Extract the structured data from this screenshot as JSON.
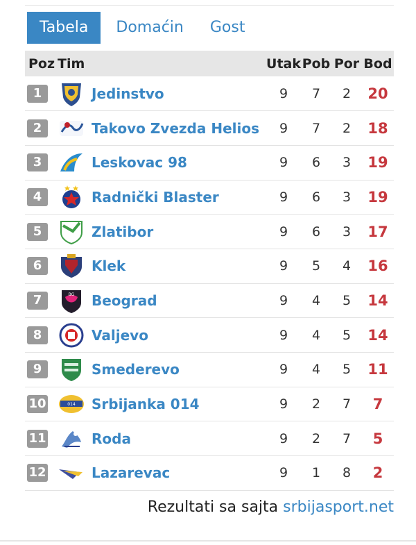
{
  "tabs": [
    {
      "label": "Tabela",
      "active": true
    },
    {
      "label": "Domaćin",
      "active": false
    },
    {
      "label": "Gost",
      "active": false
    }
  ],
  "table": {
    "headers": {
      "poz": "Poz",
      "tim": "Tim",
      "utak": "Utak",
      "pob": "Pob",
      "por": "Por",
      "bod": "Bod"
    },
    "rows": [
      {
        "pos": "1",
        "team": "Jedinstvo",
        "utak": "9",
        "pob": "7",
        "por": "2",
        "bod": "20",
        "logo": "jedinstvo-logo-icon"
      },
      {
        "pos": "2",
        "team": "Takovo Zvezda Helios",
        "utak": "9",
        "pob": "7",
        "por": "2",
        "bod": "18",
        "logo": "takovo-logo-icon"
      },
      {
        "pos": "3",
        "team": "Leskovac 98",
        "utak": "9",
        "pob": "6",
        "por": "3",
        "bod": "19",
        "logo": "leskovac-logo-icon"
      },
      {
        "pos": "4",
        "team": "Radnički Blaster",
        "utak": "9",
        "pob": "6",
        "por": "3",
        "bod": "19",
        "logo": "radnicki-logo-icon"
      },
      {
        "pos": "5",
        "team": "Zlatibor",
        "utak": "9",
        "pob": "6",
        "por": "3",
        "bod": "17",
        "logo": "zlatibor-logo-icon"
      },
      {
        "pos": "6",
        "team": "Klek",
        "utak": "9",
        "pob": "5",
        "por": "4",
        "bod": "16",
        "logo": "klek-logo-icon"
      },
      {
        "pos": "7",
        "team": "Beograd",
        "utak": "9",
        "pob": "4",
        "por": "5",
        "bod": "14",
        "logo": "beograd-logo-icon"
      },
      {
        "pos": "8",
        "team": "Valjevo",
        "utak": "9",
        "pob": "4",
        "por": "5",
        "bod": "14",
        "logo": "valjevo-logo-icon"
      },
      {
        "pos": "9",
        "team": "Smederevo",
        "utak": "9",
        "pob": "4",
        "por": "5",
        "bod": "11",
        "logo": "smederevo-logo-icon"
      },
      {
        "pos": "10",
        "team": "Srbijanka 014",
        "utak": "9",
        "pob": "2",
        "por": "7",
        "bod": "7",
        "logo": "srbijanka-logo-icon"
      },
      {
        "pos": "11",
        "team": "Roda",
        "utak": "9",
        "pob": "2",
        "por": "7",
        "bod": "5",
        "logo": "roda-logo-icon"
      },
      {
        "pos": "12",
        "team": "Lazarevac",
        "utak": "9",
        "pob": "1",
        "por": "8",
        "bod": "2",
        "logo": "lazarevac-logo-icon"
      }
    ]
  },
  "footer": {
    "prefix": "Rezultati sa sajta",
    "link": "srbijasport.net"
  },
  "colors": {
    "accent": "#3a87c4",
    "points": "#c6383e",
    "badge": "#9a9a9a",
    "header_bg": "#e6e6e6"
  }
}
